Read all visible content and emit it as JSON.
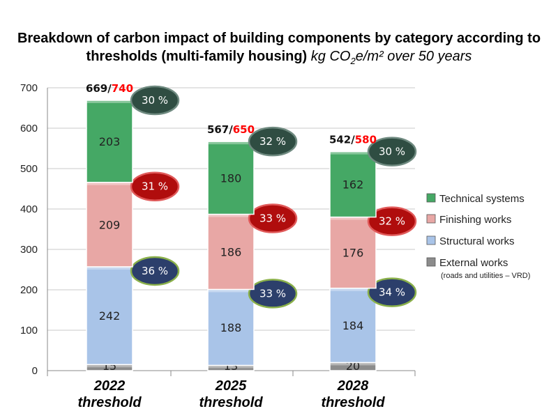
{
  "chart_data": {
    "type": "bar",
    "stacked": true,
    "title": "Breakdown of carbon impact of building components by category according to thresholds (multi-family housing)",
    "units_prefix": "kg CO",
    "units_sub": "2",
    "units_suffix": "e/m² over 50 years",
    "categories": [
      "2022 threshold",
      "2025 threshold",
      "2028 threshold"
    ],
    "category_lines": [
      [
        "2022",
        "threshold"
      ],
      [
        "2025",
        "threshold"
      ],
      [
        "2028",
        "threshold"
      ]
    ],
    "series": [
      {
        "name": "External works",
        "note": "(roads and utilities – VRD)",
        "values": [
          15,
          13,
          20
        ],
        "color": "#8c8c8c",
        "pct": null
      },
      {
        "name": "Structural works",
        "note": "",
        "values": [
          242,
          188,
          184
        ],
        "color": "#a9c4e8",
        "pct": [
          "36 %",
          "33 %",
          "34 %"
        ],
        "pct_fill": "#2c3f6b",
        "pct_stroke": "#8ab04a"
      },
      {
        "name": "Finishing works",
        "note": "",
        "values": [
          209,
          186,
          176
        ],
        "color": "#e8a7a5",
        "pct": [
          "31 %",
          "33 %",
          "32 %"
        ],
        "pct_fill": "#b00d0d",
        "pct_stroke": "#e05a5a"
      },
      {
        "name": "Technical systems",
        "note": "",
        "values": [
          203,
          180,
          162
        ],
        "color": "#45a865",
        "pct": [
          "30 %",
          "32 %",
          "30 %"
        ],
        "pct_fill": "#2f4d42",
        "pct_stroke": "#6f8a80"
      }
    ],
    "totals": [
      "669",
      "567",
      "542"
    ],
    "thresholds": [
      "740",
      "650",
      "580"
    ],
    "total_color": "#111111",
    "threshold_color": "#ff0000",
    "yticks": [
      0,
      100,
      200,
      300,
      400,
      500,
      600,
      700
    ],
    "ylim": [
      0,
      700
    ],
    "grid": true,
    "legend_position": "right"
  }
}
